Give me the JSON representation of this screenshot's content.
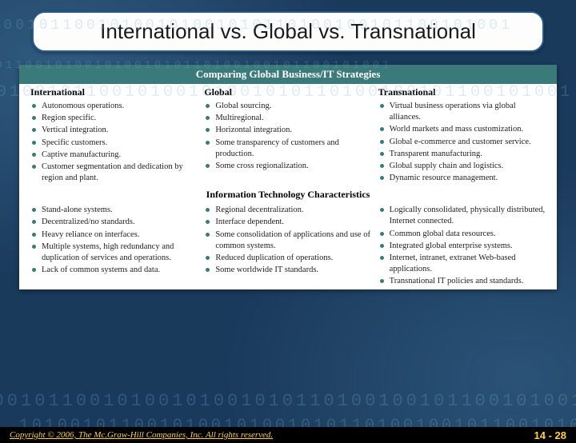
{
  "title": "International vs. Global vs. Transnational",
  "bg_digits": "1010010110010100101001010110100100101100101001",
  "table": {
    "banner1": "Comparing Global Business/IT Strategies",
    "banner2": "Information Technology Characteristics",
    "headers": {
      "col1": "International",
      "col2": "Global",
      "col3": "Transnational"
    },
    "strategies": {
      "international": [
        "Autonomous operations.",
        "Region specific.",
        "Vertical integration.",
        "Specific customers.",
        "Captive manufacturing.",
        "Customer segmentation and dedication by region and plant."
      ],
      "global": [
        "Global sourcing.",
        "Multiregional.",
        "Horizontal integration.",
        "Some transparency of customers and production.",
        "Some cross regionalization."
      ],
      "transnational": [
        "Virtual business operations via global alliances.",
        "World markets and mass customization.",
        "Global e-commerce and customer service.",
        "Transparent manufacturing.",
        "Global supply chain and logistics.",
        "Dynamic resource management."
      ]
    },
    "it_chars": {
      "international": [
        "Stand-alone systems.",
        "Decentralized/no standards.",
        "Heavy reliance on interfaces.",
        "Multiple systems, high redundancy and duplication of services and operations.",
        "Lack of common systems and data."
      ],
      "global": [
        "Regional decentralization.",
        "Interface dependent.",
        "Some consolidation of applications and use of common systems.",
        "Reduced duplication of operations.",
        "Some worldwide IT standards."
      ],
      "transnational": [
        "Logically consolidated, physically distributed, Internet connected.",
        "Common global data resources.",
        "Integrated global enterprise systems.",
        "Internet, intranet, extranet Web-based applications.",
        "Transnational IT policies and standards."
      ]
    }
  },
  "footer": {
    "copyright": "Copyright © 2006, The Mc.Graw-Hill Companies, Inc. All rights reserved.",
    "page": "14 - 28"
  },
  "colors": {
    "banner_bg": "#3a7a7a",
    "title_border": "#2a5a8a",
    "footer_text": "#ffd040"
  }
}
